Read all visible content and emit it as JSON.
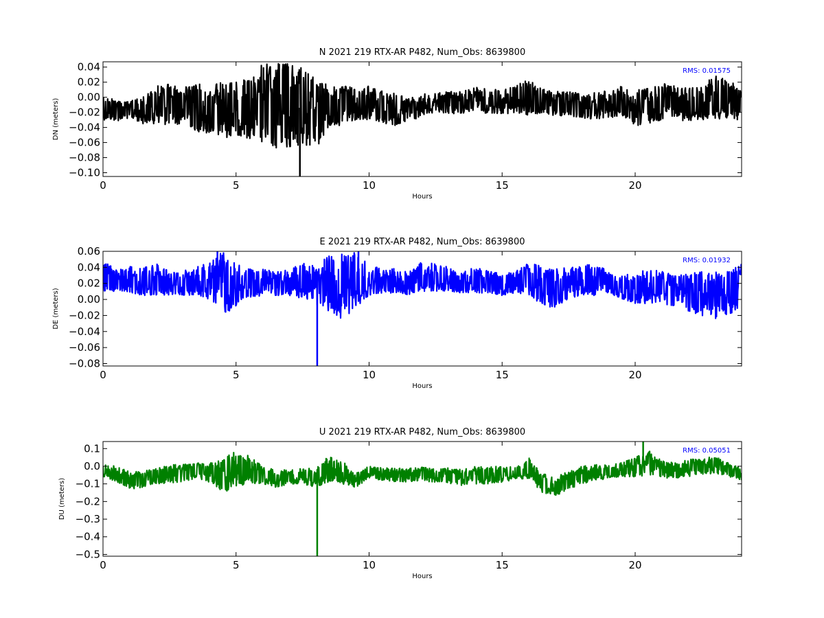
{
  "chart_data": [
    {
      "type": "line",
      "title": "N 2021 219 RTX-AR  P482, Num_Obs: 8639800",
      "xlabel": "Hours",
      "ylabel": "DN (meters)",
      "xlim": [
        0,
        24
      ],
      "ylim": [
        -0.105,
        0.047
      ],
      "xticks": [
        0,
        5,
        10,
        15,
        20
      ],
      "xtick_labels": [
        "0",
        "5",
        "10",
        "15",
        "20"
      ],
      "yticks": [
        -0.1,
        -0.08,
        -0.06,
        -0.04,
        -0.02,
        0.0,
        0.02,
        0.04
      ],
      "ytick_labels": [
        "−0.10",
        "−0.08",
        "−0.06",
        "−0.04",
        "−0.02",
        "0.00",
        "0.02",
        "0.04"
      ],
      "annotation": "RMS:  0.01575",
      "annotation_color": "#0000ff",
      "grid": false,
      "series": [
        {
          "color": "#000000",
          "x": [
            0,
            0.5,
            1,
            1.5,
            2,
            2.5,
            3,
            3.5,
            4,
            4.5,
            5,
            5.5,
            6,
            6.5,
            7,
            7.5,
            8,
            8.5,
            9,
            9.5,
            10,
            10.5,
            11,
            11.5,
            12,
            12.5,
            13,
            13.5,
            14,
            14.5,
            15,
            15.5,
            16,
            16.5,
            17,
            17.5,
            18,
            18.5,
            19,
            19.5,
            20,
            20.5,
            21,
            21.5,
            22,
            22.5,
            23,
            23.5,
            24
          ],
          "center": [
            -0.015,
            -0.018,
            -0.018,
            -0.02,
            -0.012,
            -0.01,
            -0.012,
            -0.015,
            -0.02,
            -0.02,
            -0.02,
            -0.015,
            -0.01,
            -0.005,
            -0.01,
            -0.015,
            -0.02,
            -0.01,
            -0.005,
            -0.01,
            -0.01,
            -0.012,
            -0.02,
            -0.015,
            -0.01,
            -0.008,
            -0.008,
            -0.008,
            -0.002,
            -0.005,
            -0.008,
            -0.005,
            -0.005,
            -0.008,
            -0.01,
            -0.01,
            -0.012,
            -0.012,
            -0.012,
            -0.008,
            -0.015,
            -0.012,
            -0.008,
            -0.005,
            -0.01,
            -0.012,
            -0.008,
            -0.01,
            -0.01
          ],
          "upper": [
            0.005,
            -0.005,
            -0.005,
            0.0,
            0.015,
            0.018,
            0.012,
            0.02,
            0.015,
            0.02,
            0.02,
            0.025,
            0.045,
            0.045,
            0.045,
            0.04,
            0.025,
            0.015,
            0.018,
            0.01,
            0.015,
            0.01,
            0.005,
            -0.002,
            0.005,
            0.005,
            0.008,
            0.008,
            0.015,
            0.012,
            0.01,
            0.015,
            0.025,
            0.012,
            0.008,
            0.008,
            0.005,
            0.008,
            0.008,
            0.015,
            0.01,
            0.012,
            0.02,
            0.015,
            0.012,
            0.015,
            0.03,
            0.025,
            0.01
          ],
          "lower": [
            -0.03,
            -0.032,
            -0.028,
            -0.035,
            -0.035,
            -0.038,
            -0.035,
            -0.045,
            -0.05,
            -0.055,
            -0.05,
            -0.055,
            -0.065,
            -0.07,
            -0.068,
            -0.065,
            -0.068,
            -0.045,
            -0.035,
            -0.03,
            -0.03,
            -0.035,
            -0.038,
            -0.035,
            -0.025,
            -0.022,
            -0.022,
            -0.022,
            -0.018,
            -0.022,
            -0.022,
            -0.022,
            -0.025,
            -0.022,
            -0.025,
            -0.025,
            -0.028,
            -0.03,
            -0.028,
            -0.025,
            -0.04,
            -0.035,
            -0.03,
            -0.025,
            -0.035,
            -0.03,
            -0.028,
            -0.03,
            -0.03
          ]
        }
      ],
      "spikes": [
        {
          "x": 7.4,
          "y": -0.105
        }
      ]
    },
    {
      "type": "line",
      "title": "E 2021 219 RTX-AR  P482, Num_Obs: 8639800",
      "xlabel": "Hours",
      "ylabel": "DE (meters)",
      "xlim": [
        0,
        24
      ],
      "ylim": [
        -0.083,
        0.06
      ],
      "xticks": [
        0,
        5,
        10,
        15,
        20
      ],
      "xtick_labels": [
        "0",
        "5",
        "10",
        "15",
        "20"
      ],
      "yticks": [
        -0.08,
        -0.06,
        -0.04,
        -0.02,
        0.0,
        0.02,
        0.04,
        0.06
      ],
      "ytick_labels": [
        "−0.08",
        "−0.06",
        "−0.04",
        "−0.02",
        "0.00",
        "0.02",
        "0.04",
        "0.06"
      ],
      "annotation": "RMS:  0.01932",
      "annotation_color": "#0000ff",
      "grid": false,
      "series": [
        {
          "color": "#0000ff",
          "x": [
            0,
            0.5,
            1,
            1.5,
            2,
            2.5,
            3,
            3.5,
            4,
            4.5,
            5,
            5.5,
            6,
            6.5,
            7,
            7.5,
            8,
            8.5,
            9,
            9.5,
            10,
            10.5,
            11,
            11.5,
            12,
            12.5,
            13,
            13.5,
            14,
            14.5,
            15,
            15.5,
            16,
            16.5,
            17,
            17.5,
            18,
            18.5,
            19,
            19.5,
            20,
            20.5,
            21,
            21.5,
            22,
            22.5,
            23,
            23.5,
            24
          ],
          "center": [
            0.025,
            0.02,
            0.02,
            0.02,
            0.022,
            0.018,
            0.018,
            0.02,
            0.018,
            0.015,
            0.02,
            0.022,
            0.022,
            0.02,
            0.02,
            0.022,
            0.02,
            0.018,
            0.015,
            0.02,
            0.02,
            0.022,
            0.022,
            0.02,
            0.025,
            0.028,
            0.025,
            0.022,
            0.025,
            0.022,
            0.02,
            0.022,
            0.025,
            0.018,
            0.018,
            0.02,
            0.02,
            0.022,
            0.025,
            0.018,
            0.015,
            0.015,
            0.015,
            0.015,
            0.012,
            0.012,
            0.01,
            0.01,
            0.015
          ],
          "upper": [
            0.05,
            0.038,
            0.042,
            0.04,
            0.045,
            0.035,
            0.035,
            0.042,
            0.045,
            0.06,
            0.045,
            0.038,
            0.038,
            0.035,
            0.038,
            0.045,
            0.045,
            0.055,
            0.06,
            0.06,
            0.042,
            0.04,
            0.038,
            0.035,
            0.048,
            0.045,
            0.04,
            0.035,
            0.04,
            0.035,
            0.032,
            0.035,
            0.05,
            0.04,
            0.038,
            0.04,
            0.042,
            0.045,
            0.035,
            0.03,
            0.035,
            0.038,
            0.035,
            0.03,
            0.032,
            0.035,
            0.035,
            0.035,
            0.045
          ],
          "lower": [
            0.01,
            0.01,
            0.008,
            0.005,
            0.005,
            0.005,
            0.005,
            0.005,
            0.0,
            -0.02,
            -0.01,
            0.0,
            0.005,
            0.005,
            0.005,
            0.0,
            -0.01,
            -0.015,
            -0.025,
            -0.01,
            0.005,
            0.008,
            0.008,
            0.005,
            0.01,
            0.01,
            0.01,
            0.008,
            0.008,
            0.008,
            0.005,
            0.008,
            0.005,
            -0.01,
            -0.01,
            0.0,
            0.005,
            0.005,
            0.008,
            0.0,
            -0.005,
            -0.005,
            -0.005,
            -0.01,
            -0.015,
            -0.02,
            -0.025,
            -0.02,
            -0.01
          ]
        }
      ],
      "spikes": [
        {
          "x": 8.05,
          "y": -0.083
        },
        {
          "x": 4.3,
          "y": 0.06
        },
        {
          "x": 9.6,
          "y": 0.06
        }
      ]
    },
    {
      "type": "line",
      "title": "U 2021 219 RTX-AR  P482, Num_Obs: 8639800",
      "xlabel": "Hours",
      "ylabel": "DU (meters)",
      "xlim": [
        0,
        24
      ],
      "ylim": [
        -0.51,
        0.14
      ],
      "xticks": [
        0,
        5,
        10,
        15,
        20
      ],
      "xtick_labels": [
        "0",
        "5",
        "10",
        "15",
        "20"
      ],
      "yticks": [
        -0.5,
        -0.4,
        -0.3,
        -0.2,
        -0.1,
        0.0,
        0.1
      ],
      "ytick_labels": [
        "−0.5",
        "−0.4",
        "−0.3",
        "−0.2",
        "−0.1",
        "0.0",
        "0.1"
      ],
      "annotation": "RMS:  0.05051",
      "annotation_color": "#0000ff",
      "grid": false,
      "series": [
        {
          "color": "#008000",
          "x": [
            0,
            0.5,
            1,
            1.5,
            2,
            2.5,
            3,
            3.5,
            4,
            4.5,
            5,
            5.5,
            6,
            6.5,
            7,
            7.5,
            8,
            8.5,
            9,
            9.5,
            10,
            10.5,
            11,
            11.5,
            12,
            12.5,
            13,
            13.5,
            14,
            14.5,
            15,
            15.5,
            16,
            16.5,
            17,
            17.5,
            18,
            18.5,
            19,
            19.5,
            20,
            20.5,
            21,
            21.5,
            22,
            22.5,
            23,
            23.5,
            24
          ],
          "center": [
            -0.03,
            -0.04,
            -0.08,
            -0.07,
            -0.05,
            -0.04,
            -0.04,
            -0.02,
            -0.03,
            -0.05,
            -0.03,
            -0.03,
            -0.06,
            -0.07,
            -0.06,
            -0.06,
            -0.07,
            -0.03,
            -0.05,
            -0.08,
            -0.03,
            -0.04,
            -0.05,
            -0.05,
            -0.04,
            -0.05,
            -0.05,
            -0.06,
            -0.05,
            -0.05,
            -0.04,
            -0.04,
            -0.03,
            -0.09,
            -0.11,
            -0.08,
            -0.06,
            -0.04,
            -0.03,
            -0.03,
            -0.01,
            0.02,
            -0.02,
            -0.03,
            -0.01,
            0.0,
            0.01,
            -0.02,
            -0.04
          ],
          "upper": [
            0.01,
            0.0,
            -0.03,
            -0.02,
            0.0,
            0.01,
            0.01,
            0.02,
            0.02,
            0.04,
            0.09,
            0.06,
            0.0,
            -0.02,
            -0.02,
            -0.01,
            0.0,
            0.06,
            0.03,
            -0.04,
            0.0,
            -0.01,
            -0.01,
            -0.01,
            0.0,
            -0.01,
            -0.01,
            -0.02,
            0.0,
            0.0,
            0.0,
            0.0,
            0.05,
            -0.04,
            -0.06,
            -0.03,
            0.0,
            0.01,
            0.01,
            0.02,
            0.06,
            0.09,
            0.03,
            0.02,
            0.04,
            0.04,
            0.06,
            0.02,
            -0.01
          ],
          "lower": [
            -0.06,
            -0.09,
            -0.13,
            -0.12,
            -0.1,
            -0.1,
            -0.09,
            -0.07,
            -0.09,
            -0.15,
            -0.12,
            -0.1,
            -0.1,
            -0.12,
            -0.1,
            -0.1,
            -0.12,
            -0.09,
            -0.1,
            -0.12,
            -0.07,
            -0.08,
            -0.09,
            -0.09,
            -0.08,
            -0.1,
            -0.1,
            -0.11,
            -0.1,
            -0.1,
            -0.09,
            -0.08,
            -0.07,
            -0.15,
            -0.17,
            -0.13,
            -0.1,
            -0.08,
            -0.07,
            -0.06,
            -0.06,
            -0.05,
            -0.07,
            -0.07,
            -0.06,
            -0.05,
            -0.04,
            -0.06,
            -0.08
          ]
        }
      ],
      "spikes": [
        {
          "x": 8.05,
          "y": -0.51
        },
        {
          "x": 20.3,
          "y": 0.14
        }
      ]
    }
  ]
}
